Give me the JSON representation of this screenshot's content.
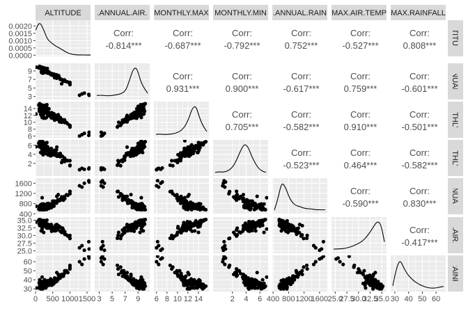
{
  "chart_data": {
    "type": "scatter",
    "matrix_type": "pairs",
    "variables": [
      "ALTITUDE",
      "MEAN.ANNUAL.AIR.TEMP",
      "MEAN.MONTHLY.MAX.TEMP",
      "MEAN.MONTHLY.MIN.TEMP",
      "MEAN.ANNUAL.RAINFALL",
      "MAX.AIR.TEMP",
      "MAX.RAINFALL"
    ],
    "strip_labels": [
      "ALTITUDE",
      ".ANNUAL.AIR.",
      "MONTHLY.MAX",
      "MONTHLY.MIN",
      ".ANNUAL.RAIN",
      "MAX.AIR.TEMP",
      "MAX.RAINFALL"
    ],
    "right_strip_labels": [
      "ALTITUDE",
      "ANNUAL.AI",
      "ONTHLY.M",
      "ONTHLY.M",
      "ANNUAL.R",
      "AX.AIR.TE",
      "X.RAINFAL"
    ],
    "corr_heading": "Corr:",
    "correlations": [
      {
        "row": 0,
        "col": 1,
        "label": "-0.814***"
      },
      {
        "row": 0,
        "col": 2,
        "label": "-0.687***"
      },
      {
        "row": 0,
        "col": 3,
        "label": "-0.792***"
      },
      {
        "row": 0,
        "col": 4,
        "label": "0.752***"
      },
      {
        "row": 0,
        "col": 5,
        "label": "-0.527***"
      },
      {
        "row": 0,
        "col": 6,
        "label": "0.808***"
      },
      {
        "row": 1,
        "col": 2,
        "label": "0.931***"
      },
      {
        "row": 1,
        "col": 3,
        "label": "0.900***"
      },
      {
        "row": 1,
        "col": 4,
        "label": "-0.617***"
      },
      {
        "row": 1,
        "col": 5,
        "label": "0.759***"
      },
      {
        "row": 1,
        "col": 6,
        "label": "-0.601***"
      },
      {
        "row": 2,
        "col": 3,
        "label": "0.705***"
      },
      {
        "row": 2,
        "col": 4,
        "label": "-0.582***"
      },
      {
        "row": 2,
        "col": 5,
        "label": "0.910***"
      },
      {
        "row": 2,
        "col": 6,
        "label": "-0.501***"
      },
      {
        "row": 3,
        "col": 4,
        "label": "-0.523***"
      },
      {
        "row": 3,
        "col": 5,
        "label": "0.464***"
      },
      {
        "row": 3,
        "col": 6,
        "label": "-0.582***"
      },
      {
        "row": 4,
        "col": 5,
        "label": "-0.590***"
      },
      {
        "row": 4,
        "col": 6,
        "label": "0.830***"
      },
      {
        "row": 5,
        "col": 6,
        "label": "-0.417***"
      }
    ],
    "x_ranges": [
      [
        0,
        1600
      ],
      [
        2.3,
        10.8
      ],
      [
        5.5,
        16
      ],
      [
        -0.8,
        7.2
      ],
      [
        380,
        1800
      ],
      [
        24.2,
        36
      ],
      [
        27,
        67
      ]
    ],
    "y_ranges": [
      [
        -8e-05,
        0.0024
      ],
      [
        2.3,
        10.8
      ],
      [
        5.5,
        16
      ],
      [
        -0.8,
        7.2
      ],
      [
        380,
        1800
      ],
      [
        24.2,
        36
      ],
      [
        27,
        67
      ]
    ],
    "x_ticks": [
      [
        "0",
        "500",
        "1000",
        "1500"
      ],
      [
        "3",
        "5",
        "7",
        "9"
      ],
      [
        "6",
        "8",
        "10",
        "12",
        "14"
      ],
      [
        "2",
        "4",
        "6"
      ],
      [
        "400",
        "800",
        "1200",
        "1600"
      ],
      [
        "25.0",
        "27.5",
        "30.0",
        "32.5",
        "35.0"
      ],
      [
        "30",
        "40",
        "50",
        "60"
      ]
    ],
    "y_ticks": [
      [
        "0.0000",
        "0.0005",
        "0.0010",
        "0.0015",
        "0.0020"
      ],
      [
        "3",
        "5",
        "7",
        "9"
      ],
      [
        "6",
        "8",
        "10",
        "12",
        "14"
      ],
      [
        "2",
        "4",
        "6"
      ],
      [
        "400",
        "800",
        "1200",
        "1600"
      ],
      [
        "25.0",
        "27.5",
        "30.0",
        "32.5",
        "35.0"
      ],
      [
        "30",
        "40",
        "50",
        "60"
      ]
    ],
    "diagonal_density": [
      [
        0.0017,
        0.0023,
        0.0018,
        0.0011,
        0.00085,
        0.00065,
        0.0005,
        0.00034,
        0.00018,
        8e-05,
        3e-05,
        2e-05,
        2e-05,
        1e-05,
        1e-05
      ],
      [
        0.04,
        0.05,
        0.04,
        0.03,
        0.04,
        0.06,
        0.08,
        0.12,
        0.22,
        0.55,
        0.95,
        1.0,
        0.55,
        0.3,
        0.12
      ],
      [
        0.02,
        0.03,
        0.02,
        0.02,
        0.03,
        0.05,
        0.09,
        0.16,
        0.3,
        0.55,
        0.92,
        1.0,
        0.58,
        0.3,
        0.12
      ],
      [
        0.03,
        0.05,
        0.04,
        0.06,
        0.12,
        0.25,
        0.48,
        0.78,
        1.0,
        0.92,
        0.6,
        0.34,
        0.16,
        0.07,
        0.03
      ],
      [
        0.05,
        0.45,
        1.0,
        0.85,
        0.5,
        0.3,
        0.2,
        0.17,
        0.12,
        0.1,
        0.09,
        0.07,
        0.06,
        0.06,
        0.06
      ],
      [
        0.05,
        0.05,
        0.06,
        0.07,
        0.1,
        0.14,
        0.19,
        0.25,
        0.33,
        0.45,
        0.62,
        0.82,
        1.0,
        0.92,
        0.3
      ],
      [
        0.1,
        0.7,
        1.0,
        0.72,
        0.5,
        0.36,
        0.25,
        0.17,
        0.11,
        0.06,
        0.03,
        0.02,
        0.03,
        0.06,
        0.08
      ]
    ],
    "observations": [
      [
        620,
        7.3,
        12.0,
        5.6,
        1088,
        33.6,
        48
      ],
      [
        660,
        7.9,
        12.2,
        3.6,
        1154,
        33.2,
        46
      ],
      [
        193,
        9.5,
        11.4,
        7.0,
        1034,
        32.1,
        43
      ],
      [
        14,
        9.9,
        12.4,
        5.7,
        696,
        34.4,
        31
      ],
      [
        236,
        9.3,
        14.0,
        6.6,
        785,
        31.0,
        36
      ],
      [
        180,
        8.6,
        11.9,
        4.7,
        616,
        34.4,
        34
      ],
      [
        190,
        9.6,
        14.4,
        6.2,
        787,
        33.8,
        36
      ],
      [
        209,
        8.8,
        11.6,
        4.5,
        580,
        33.1,
        35
      ],
      [
        167,
        9.8,
        13.3,
        5.4,
        613,
        31.5,
        31
      ],
      [
        241,
        9.6,
        14.3,
        5.9,
        679,
        33.8,
        34
      ],
      [
        211,
        9.2,
        11.9,
        4.4,
        671,
        34.5,
        30
      ],
      [
        170,
        8.9,
        13.8,
        4.4,
        762,
        33.2,
        32
      ],
      [
        122,
        9.7,
        14.1,
        6.4,
        664,
        33.3,
        40
      ],
      [
        234,
        9.7,
        14.2,
        6.2,
        662,
        34.5,
        34
      ],
      [
        111,
        10.0,
        13.2,
        5.7,
        681,
        33.7,
        36
      ],
      [
        285,
        9.1,
        12.7,
        6.1,
        599,
        33.8,
        34
      ],
      [
        149,
        9.7,
        12.3,
        4.4,
        755,
        33.1,
        30
      ],
      [
        223,
        8.9,
        12.0,
        5.2,
        567,
        33.2,
        31
      ],
      [
        274,
        8.9,
        13.0,
        4.2,
        761,
        33.3,
        38
      ],
      [
        236,
        8.8,
        11.2,
        4.6,
        700,
        34.2,
        36
      ],
      [
        264,
        9.7,
        14.3,
        6.0,
        640,
        33.0,
        33
      ],
      [
        226,
        9.4,
        13.2,
        4.8,
        758,
        34.0,
        31
      ],
      [
        174,
        8.8,
        12.7,
        4.3,
        621,
        33.2,
        31
      ],
      [
        183,
        9.0,
        12.3,
        5.6,
        708,
        34.2,
        38
      ],
      [
        229,
        9.2,
        12.2,
        5.2,
        711,
        33.5,
        37
      ],
      [
        250,
        9.3,
        12.7,
        4.6,
        563,
        33.3,
        33
      ],
      [
        281,
        9.1,
        13.5,
        5.9,
        763,
        34.8,
        35
      ],
      [
        251,
        9.5,
        14.3,
        5.5,
        611,
        33.1,
        39
      ],
      [
        268,
        9.4,
        13.2,
        5.0,
        744,
        33.3,
        40
      ],
      [
        297,
        9.3,
        13.8,
        5.3,
        591,
        34.1,
        31
      ],
      [
        221,
        8.5,
        11.9,
        3.9,
        669,
        34.0,
        34
      ],
      [
        213,
        9.2,
        11.9,
        5.0,
        744,
        34.5,
        34
      ],
      [
        292,
        9.5,
        14.4,
        6.3,
        572,
        33.9,
        33
      ],
      [
        287,
        8.7,
        11.2,
        4.3,
        638,
        33.5,
        34
      ],
      [
        307,
        9.2,
        13.1,
        5.3,
        698,
        33.6,
        35
      ],
      [
        391,
        8.8,
        13.9,
        4.4,
        611,
        32.8,
        34
      ],
      [
        367,
        8.5,
        12.9,
        5.3,
        809,
        33.6,
        38
      ],
      [
        342,
        9.6,
        14.1,
        4.9,
        800,
        32.9,
        38
      ],
      [
        321,
        8.6,
        11.4,
        5.3,
        682,
        32.5,
        34
      ],
      [
        406,
        8.6,
        12.5,
        4.9,
        743,
        33.4,
        35
      ],
      [
        470,
        8.4,
        12.8,
        4.5,
        732,
        31.4,
        34
      ],
      [
        428,
        8.3,
        11.8,
        3.7,
        716,
        32.6,
        37
      ],
      [
        358,
        8.7,
        12.1,
        3.9,
        781,
        32.4,
        39
      ],
      [
        464,
        8.1,
        12.1,
        3.9,
        643,
        32.3,
        36
      ],
      [
        454,
        8.3,
        12.3,
        3.7,
        657,
        32.1,
        37
      ],
      [
        398,
        8.7,
        11.9,
        4.3,
        795,
        33.3,
        37
      ],
      [
        415,
        8.5,
        12.3,
        5.0,
        789,
        33.4,
        38
      ],
      [
        458,
        8.1,
        11.3,
        5.3,
        769,
        33.6,
        40
      ],
      [
        535,
        8.3,
        11.3,
        4.3,
        701,
        32.2,
        36
      ],
      [
        533,
        8.2,
        12.5,
        4.6,
        703,
        31.9,
        39
      ],
      [
        552,
        8.0,
        11.7,
        4.9,
        898,
        31.6,
        37
      ],
      [
        593,
        7.9,
        11.1,
        4.3,
        843,
        31.6,
        38
      ],
      [
        508,
        8.2,
        12.5,
        3.9,
        855,
        32.7,
        35
      ],
      [
        584,
        7.8,
        11.1,
        3.8,
        869,
        33.4,
        40
      ],
      [
        674,
        7.9,
        11.6,
        3.9,
        911,
        33.1,
        44
      ],
      [
        611,
        7.6,
        11.0,
        4.0,
        824,
        32.8,
        41
      ],
      [
        623,
        7.8,
        11.4,
        3.6,
        879,
        31.8,
        41
      ],
      [
        556,
        7.4,
        10.6,
        4.3,
        815,
        31.5,
        42
      ],
      [
        700,
        7.3,
        10.1,
        3.9,
        919,
        32.9,
        44
      ],
      [
        777,
        6.9,
        10.8,
        3.6,
        1013,
        32.2,
        44
      ],
      [
        719,
        7.2,
        11.4,
        4.2,
        932,
        32.7,
        42
      ],
      [
        788,
        6.9,
        10.1,
        2.7,
        1051,
        32.4,
        45
      ],
      [
        811,
        6.6,
        10.6,
        2.6,
        934,
        31.8,
        44
      ],
      [
        850,
        6.8,
        10.4,
        3.0,
        996,
        31.2,
        50
      ],
      [
        850,
        6.6,
        9.9,
        2.4,
        1008,
        30.4,
        48
      ],
      [
        940,
        6.4,
        9.5,
        2.6,
        1125,
        29.8,
        48
      ],
      [
        1000,
        6.3,
        9.1,
        1.5,
        1188,
        29.0,
        54
      ],
      [
        903,
        6.5,
        9.9,
        2.7,
        1149,
        30.2,
        50
      ],
      [
        1000,
        5.9,
        8.9,
        2.6,
        1280,
        30.0,
        52
      ],
      [
        1002,
        5.8,
        8.6,
        1.6,
        1270,
        29.1,
        56
      ],
      [
        760,
        6.0,
        10.0,
        2.2,
        1062,
        31.0,
        46
      ],
      [
        1280,
        3.3,
        6.0,
        0.6,
        1500,
        26.0,
        60
      ],
      [
        1350,
        3.6,
        6.4,
        0.9,
        1450,
        26.7,
        57
      ],
      [
        1420,
        3.8,
        6.8,
        0.7,
        1600,
        25.2,
        63
      ],
      [
        1550,
        3.5,
        6.2,
        0.8,
        1700,
        28.0,
        66
      ],
      [
        1560,
        3.3,
        7.1,
        1.0,
        1650,
        25.6,
        64
      ],
      [
        195,
        9.6,
        14.3,
        6.3,
        560,
        34.8,
        33
      ],
      [
        240,
        9.3,
        14.5,
        6.5,
        615,
        34.9,
        32
      ],
      [
        270,
        9.5,
        14.9,
        6.1,
        590,
        34.7,
        34
      ],
      [
        300,
        9.0,
        14.6,
        6.4,
        605,
        34.5,
        35
      ],
      [
        150,
        9.8,
        15.2,
        6.7,
        570,
        35.1,
        32
      ],
      [
        120,
        10.1,
        15.4,
        6.8,
        560,
        35.2,
        33
      ],
      [
        95,
        9.7,
        15.0,
        6.5,
        585,
        35.0,
        31
      ],
      [
        180,
        9.9,
        14.8,
        6.2,
        600,
        34.9,
        30
      ],
      [
        260,
        9.6,
        14.6,
        6.4,
        620,
        34.6,
        34
      ],
      [
        330,
        9.4,
        15.1,
        6.6,
        575,
        35.0,
        33
      ],
      [
        210,
        9.8,
        14.9,
        6.3,
        655,
        34.8,
        35
      ],
      [
        110,
        9.9,
        13.9,
        5.9,
        700,
        33.9,
        37
      ],
      [
        500,
        8.0,
        11.2,
        4.6,
        900,
        31.8,
        37
      ],
      [
        650,
        7.5,
        10.8,
        4.1,
        950,
        32.0,
        40
      ],
      [
        720,
        7.0,
        10.5,
        3.5,
        970,
        31.4,
        43
      ],
      [
        840,
        6.9,
        10.7,
        3.2,
        1080,
        30.9,
        47
      ],
      [
        580,
        7.7,
        11.5,
        4.4,
        880,
        32.3,
        39
      ],
      [
        610,
        8.1,
        12.0,
        5.0,
        820,
        32.6,
        38
      ],
      [
        440,
        8.3,
        12.6,
        4.8,
        760,
        32.9,
        41
      ],
      [
        380,
        8.7,
        12.9,
        5.1,
        720,
        33.1,
        37
      ],
      [
        350,
        8.9,
        13.4,
        5.7,
        690,
        33.7,
        35
      ],
      [
        320,
        9.1,
        13.6,
        5.4,
        760,
        33.5,
        38
      ]
    ]
  }
}
